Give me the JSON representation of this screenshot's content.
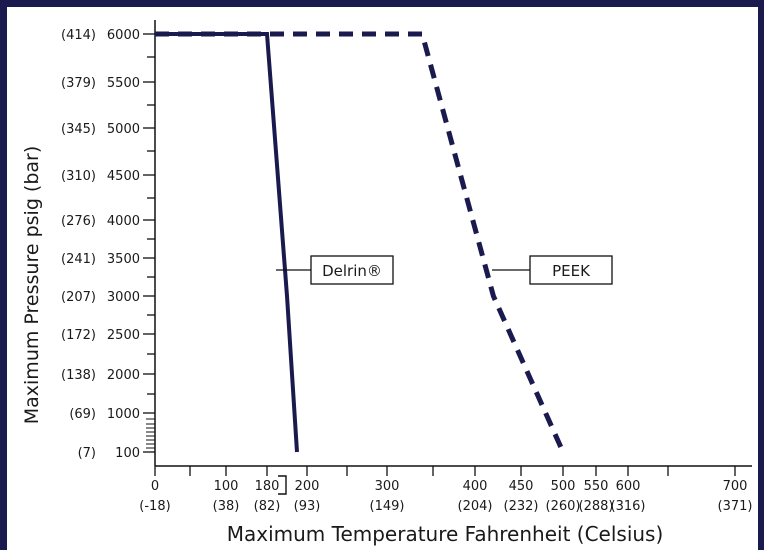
{
  "chart_data": {
    "type": "line",
    "xlabel": "Maximum Temperature Fahrenheit (Celsius)",
    "ylabel": "Maximum Pressure psig (bar)",
    "x_ticks": [
      {
        "value": 0,
        "f": "0",
        "c": "(-18)"
      },
      {
        "value": 100,
        "f": "100",
        "c": "(38)"
      },
      {
        "value": 180,
        "f": "180",
        "c": "(82)"
      },
      {
        "value": 200,
        "f": "200",
        "c": "(93)"
      },
      {
        "value": 300,
        "f": "300",
        "c": "(149)"
      },
      {
        "value": 400,
        "f": "400",
        "c": "(204)"
      },
      {
        "value": 450,
        "f": "450",
        "c": "(232)"
      },
      {
        "value": 500,
        "f": "500",
        "c": "(260)"
      },
      {
        "value": 550,
        "f": "550",
        "c": "(288)"
      },
      {
        "value": 600,
        "f": "600",
        "c": "(316)"
      },
      {
        "value": 700,
        "f": "700",
        "c": "(371)"
      }
    ],
    "y_ticks": [
      {
        "value": 6000,
        "psi": "6000",
        "bar": "(414)"
      },
      {
        "value": 5500,
        "psi": "5500",
        "bar": "(379)"
      },
      {
        "value": 5000,
        "psi": "5000",
        "bar": "(345)"
      },
      {
        "value": 4500,
        "psi": "4500",
        "bar": "(310)"
      },
      {
        "value": 4000,
        "psi": "4000",
        "bar": "(276)"
      },
      {
        "value": 3500,
        "psi": "3500",
        "bar": "(241)"
      },
      {
        "value": 3000,
        "psi": "3000",
        "bar": "(207)"
      },
      {
        "value": 2500,
        "psi": "2500",
        "bar": "(172)"
      },
      {
        "value": 2000,
        "psi": "2000",
        "bar": "(138)"
      },
      {
        "value": 1000,
        "psi": "1000",
        "bar": "(69)"
      },
      {
        "value": 100,
        "psi": "100",
        "bar": "(7)"
      }
    ],
    "series": [
      {
        "name": "Delrin®",
        "style": "solid",
        "color": "#1a1a4e",
        "points": [
          [
            0,
            6000
          ],
          [
            180,
            6000
          ],
          [
            190,
            3000
          ],
          [
            195,
            100
          ]
        ]
      },
      {
        "name": "PEEK",
        "style": "dashed",
        "color": "#1a1a4e",
        "points": [
          [
            0,
            6000
          ],
          [
            340,
            6000
          ],
          [
            420,
            3000
          ],
          [
            500,
            100
          ]
        ]
      }
    ],
    "grid": false,
    "legend": "inline callouts"
  }
}
